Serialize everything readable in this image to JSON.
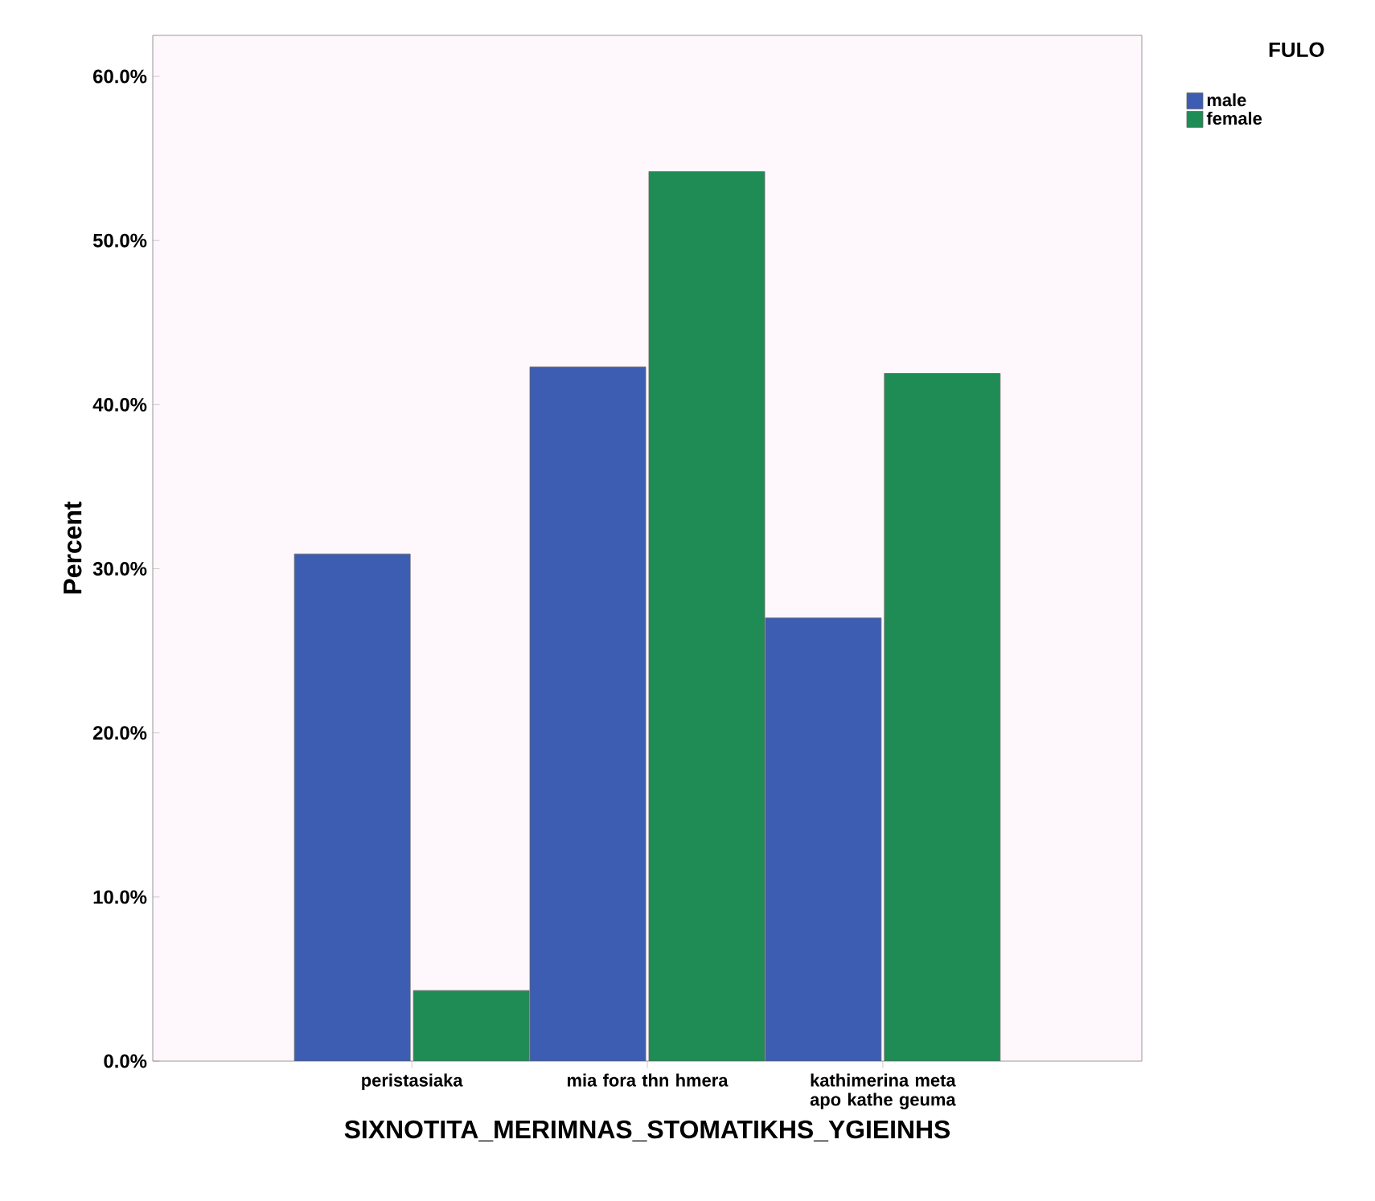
{
  "chart_data": {
    "type": "bar",
    "xlabel": "SIXNOTITA_MERIMNAS_STOMATIKHS_YGIEINHS",
    "ylabel": "Percent",
    "legend_title": "FULO",
    "legend": "top right",
    "categories": [
      "peristasiaka",
      "mia fora thn hmera",
      "kathimerina meta apo kathe geuma"
    ],
    "series": [
      {
        "name": "male",
        "color": "#3d5db3",
        "values": [
          30.9,
          42.3,
          27.0
        ]
      },
      {
        "name": "female",
        "color": "#1f8c55",
        "values": [
          4.3,
          54.2,
          41.9
        ]
      }
    ],
    "ylim": [
      0,
      62.5
    ],
    "yticks": [
      {
        "value": 0,
        "label": "0.0%"
      },
      {
        "value": 10,
        "label": "10.0%"
      },
      {
        "value": 20,
        "label": "20.0%"
      },
      {
        "value": 30,
        "label": "30.0%"
      },
      {
        "value": 40,
        "label": "40.0%"
      },
      {
        "value": 50,
        "label": "50.0%"
      },
      {
        "value": 60,
        "label": "60.0%"
      }
    ]
  }
}
